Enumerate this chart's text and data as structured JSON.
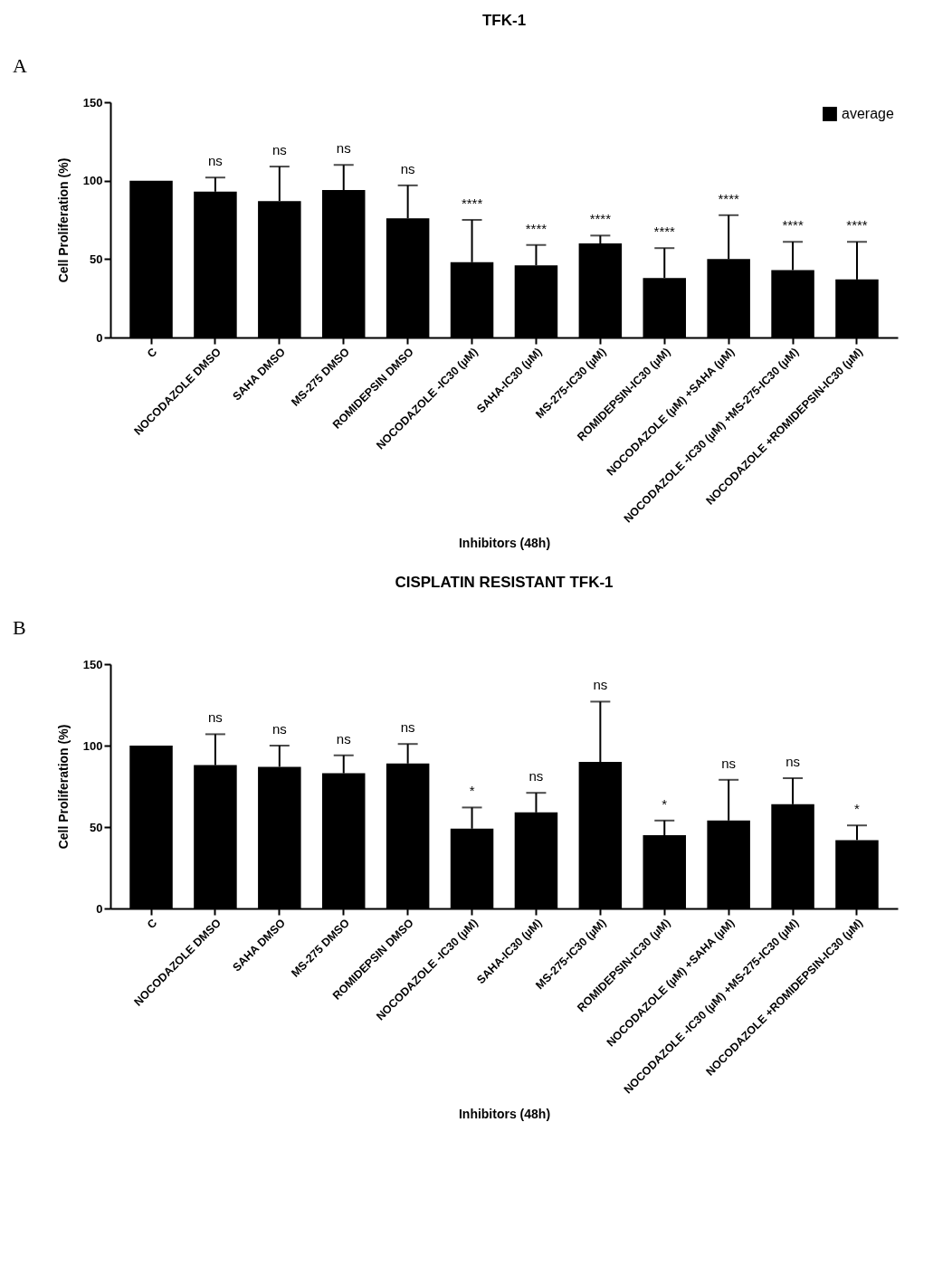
{
  "chart_data": [
    {
      "type": "bar",
      "title": "TFK-1",
      "xlabel": "Inhibitors (48h)",
      "ylabel": "Cell Proliferation (%)",
      "categories": [
        "C",
        "NOCODAZOLE DMSO",
        "SAHA DMSO",
        "MS-275 DMSO",
        "ROMIDEPSIN DMSO",
        "NOCODAZOLE -IC30 (µM)",
        "SAHA-IC30 (µM)",
        "MS-275-IC30 (µM)",
        "ROMIDEPSIN-IC30 (µM)",
        "NOCODAZOLE (µM) +SAHA (µM)",
        "NOCODAZOLE -IC30 (µM) +MS-275-IC30 (µM)",
        "NOCODAZOLE +ROMIDEPSIN-IC30 (µM)"
      ],
      "series": [
        {
          "name": "average",
          "color": "#000000",
          "values": [
            100,
            93,
            87,
            94,
            76,
            48,
            46,
            60,
            38,
            50,
            43,
            37
          ],
          "errors": [
            null,
            9,
            22,
            16,
            21,
            27,
            13,
            5,
            19,
            28,
            18,
            24
          ]
        }
      ],
      "ylim": [
        0,
        150
      ],
      "yticks": [
        0,
        50,
        100,
        150
      ],
      "legend": "top right",
      "annotations": [
        "A",
        "ns",
        "ns",
        "ns",
        "ns",
        "****",
        "****",
        "****",
        "****",
        "****",
        "****",
        "****"
      ]
    },
    {
      "type": "bar",
      "title": "CISPLATIN RESISTANT TFK-1",
      "xlabel": "Inhibitors (48h)",
      "ylabel": "Cell Proliferation (%)",
      "categories": [
        "C",
        "NOCODAZOLE DMSO",
        "SAHA DMSO",
        "MS-275 DMSO",
        "ROMIDEPSIN DMSO",
        "NOCODAZOLE -IC30 (µM)",
        "SAHA-IC30 (µM)",
        "MS-275-IC30 (µM)",
        "ROMIDEPSIN-IC30 (µM)",
        "NOCODAZOLE (µM) +SAHA (µM)",
        "NOCODAZOLE -IC30 (µM) +MS-275-IC30 (µM)",
        "NOCODAZOLE +ROMIDEPSIN-IC30 (µM)"
      ],
      "series": [
        {
          "color": "#000000",
          "values": [
            100,
            88,
            87,
            83,
            89,
            49,
            59,
            90,
            45,
            54,
            64,
            42
          ],
          "errors": [
            null,
            19,
            13,
            11,
            12,
            13,
            12,
            37,
            9,
            25,
            16,
            9
          ]
        }
      ],
      "ylim": [
        0,
        150
      ],
      "yticks": [
        0,
        50,
        100,
        150
      ],
      "annotations": [
        "B",
        "ns",
        "ns",
        "ns",
        "ns",
        "*",
        "ns",
        "ns",
        "*",
        "ns",
        "ns",
        "*"
      ]
    }
  ]
}
